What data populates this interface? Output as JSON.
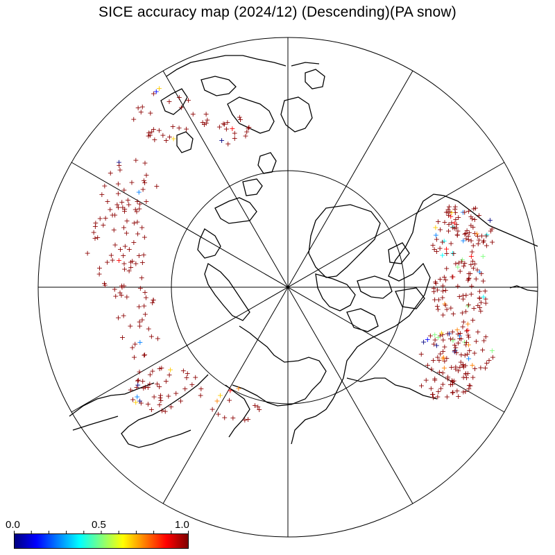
{
  "title": "SICE accuracy map (2024/12) (Descending)(PA snow)",
  "colorbar": {
    "min_label": "0.0",
    "mid_label": "0.5",
    "max_label": "1.0",
    "colors": [
      "#00007f",
      "#0000ff",
      "#007fff",
      "#00ffff",
      "#7fff7f",
      "#ffff00",
      "#ff7f00",
      "#ff0000",
      "#7f0000"
    ]
  },
  "map": {
    "projection": "north polar stereographic",
    "meridian_spacing_deg": 30,
    "latitude_circle_deg": 60,
    "coastline_color": "#000000",
    "marker": "+",
    "dominant_marker_color": "#8b0000"
  }
}
